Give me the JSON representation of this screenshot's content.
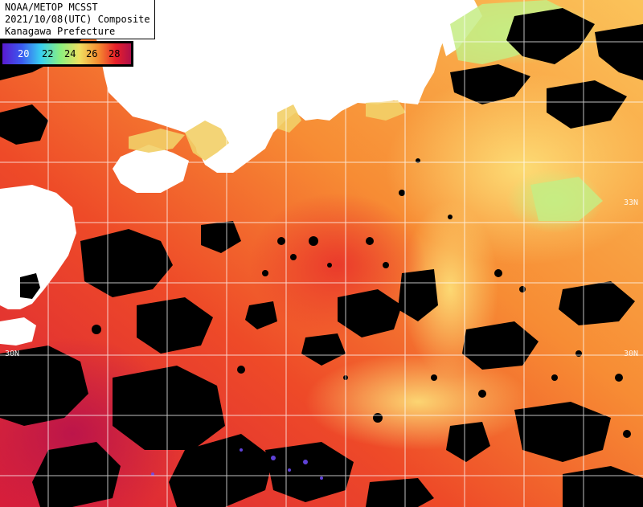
{
  "header": {
    "line1": "NOAA/METOP MCSST",
    "line2": "2021/10/08(UTC) Composite",
    "line3": "Kanagawa Prefecture"
  },
  "colorbar": {
    "ticks": [
      "20",
      "22",
      "24",
      "26",
      "28"
    ],
    "colors": [
      "#3a2ad0",
      "#3ad0f0",
      "#9af07a",
      "#f0e060",
      "#f08a30",
      "#e8202a",
      "#b0104a"
    ]
  },
  "latitude_labels": {
    "lat33_right": "33N",
    "lat30_left": "30N",
    "lat30_right": "30N"
  },
  "colors": {
    "land": "#ffffff",
    "cloud": "#000000",
    "grid": "#ffffff",
    "sst_warm": "#e8302a",
    "sst_mid": "#f58a30",
    "sst_cool": "#f8c060"
  }
}
